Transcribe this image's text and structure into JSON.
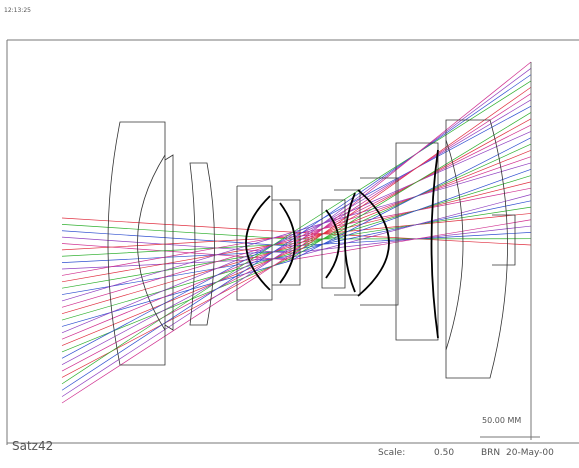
{
  "header": {
    "time": "12:13:25"
  },
  "footer": {
    "name": "Satz42",
    "scale_label": "Scale:",
    "scale_value": "0.50",
    "initials": "BRN",
    "date": "20-May-00"
  },
  "scale_bar": {
    "label": "50.00 MM"
  }
}
